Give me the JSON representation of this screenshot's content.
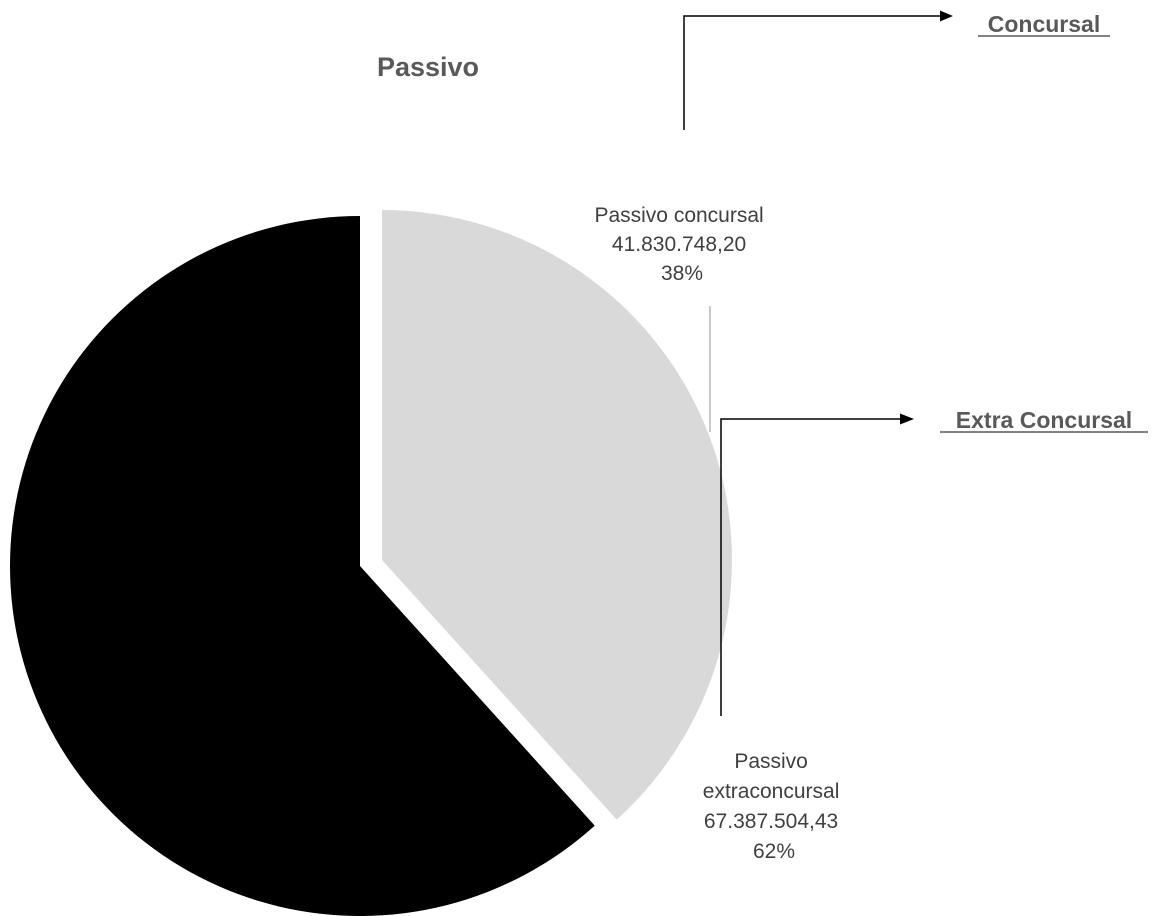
{
  "chart_data": {
    "type": "pie",
    "title": "Passivo",
    "slices": [
      {
        "label": "Passivo concursal",
        "value_text": "41.830.748,20",
        "value": 41830748.2,
        "percent_text": "38%",
        "color": "#d9d9d9"
      },
      {
        "label": "Passivo extraconcursal",
        "value_text": "67.387.504,43",
        "value": 67387504.43,
        "percent_text": "62%",
        "color": "#000000"
      }
    ]
  },
  "labels": {
    "concursal": [
      "Passivo concursal",
      "41.830.748,20",
      "38%"
    ],
    "extraconcursal": [
      "Passivo",
      "extraconcursal",
      "67.387.504,43",
      "62%"
    ]
  },
  "nav_links": {
    "concursal": "Concursal",
    "extra_concursal": "Extra Concursal"
  }
}
